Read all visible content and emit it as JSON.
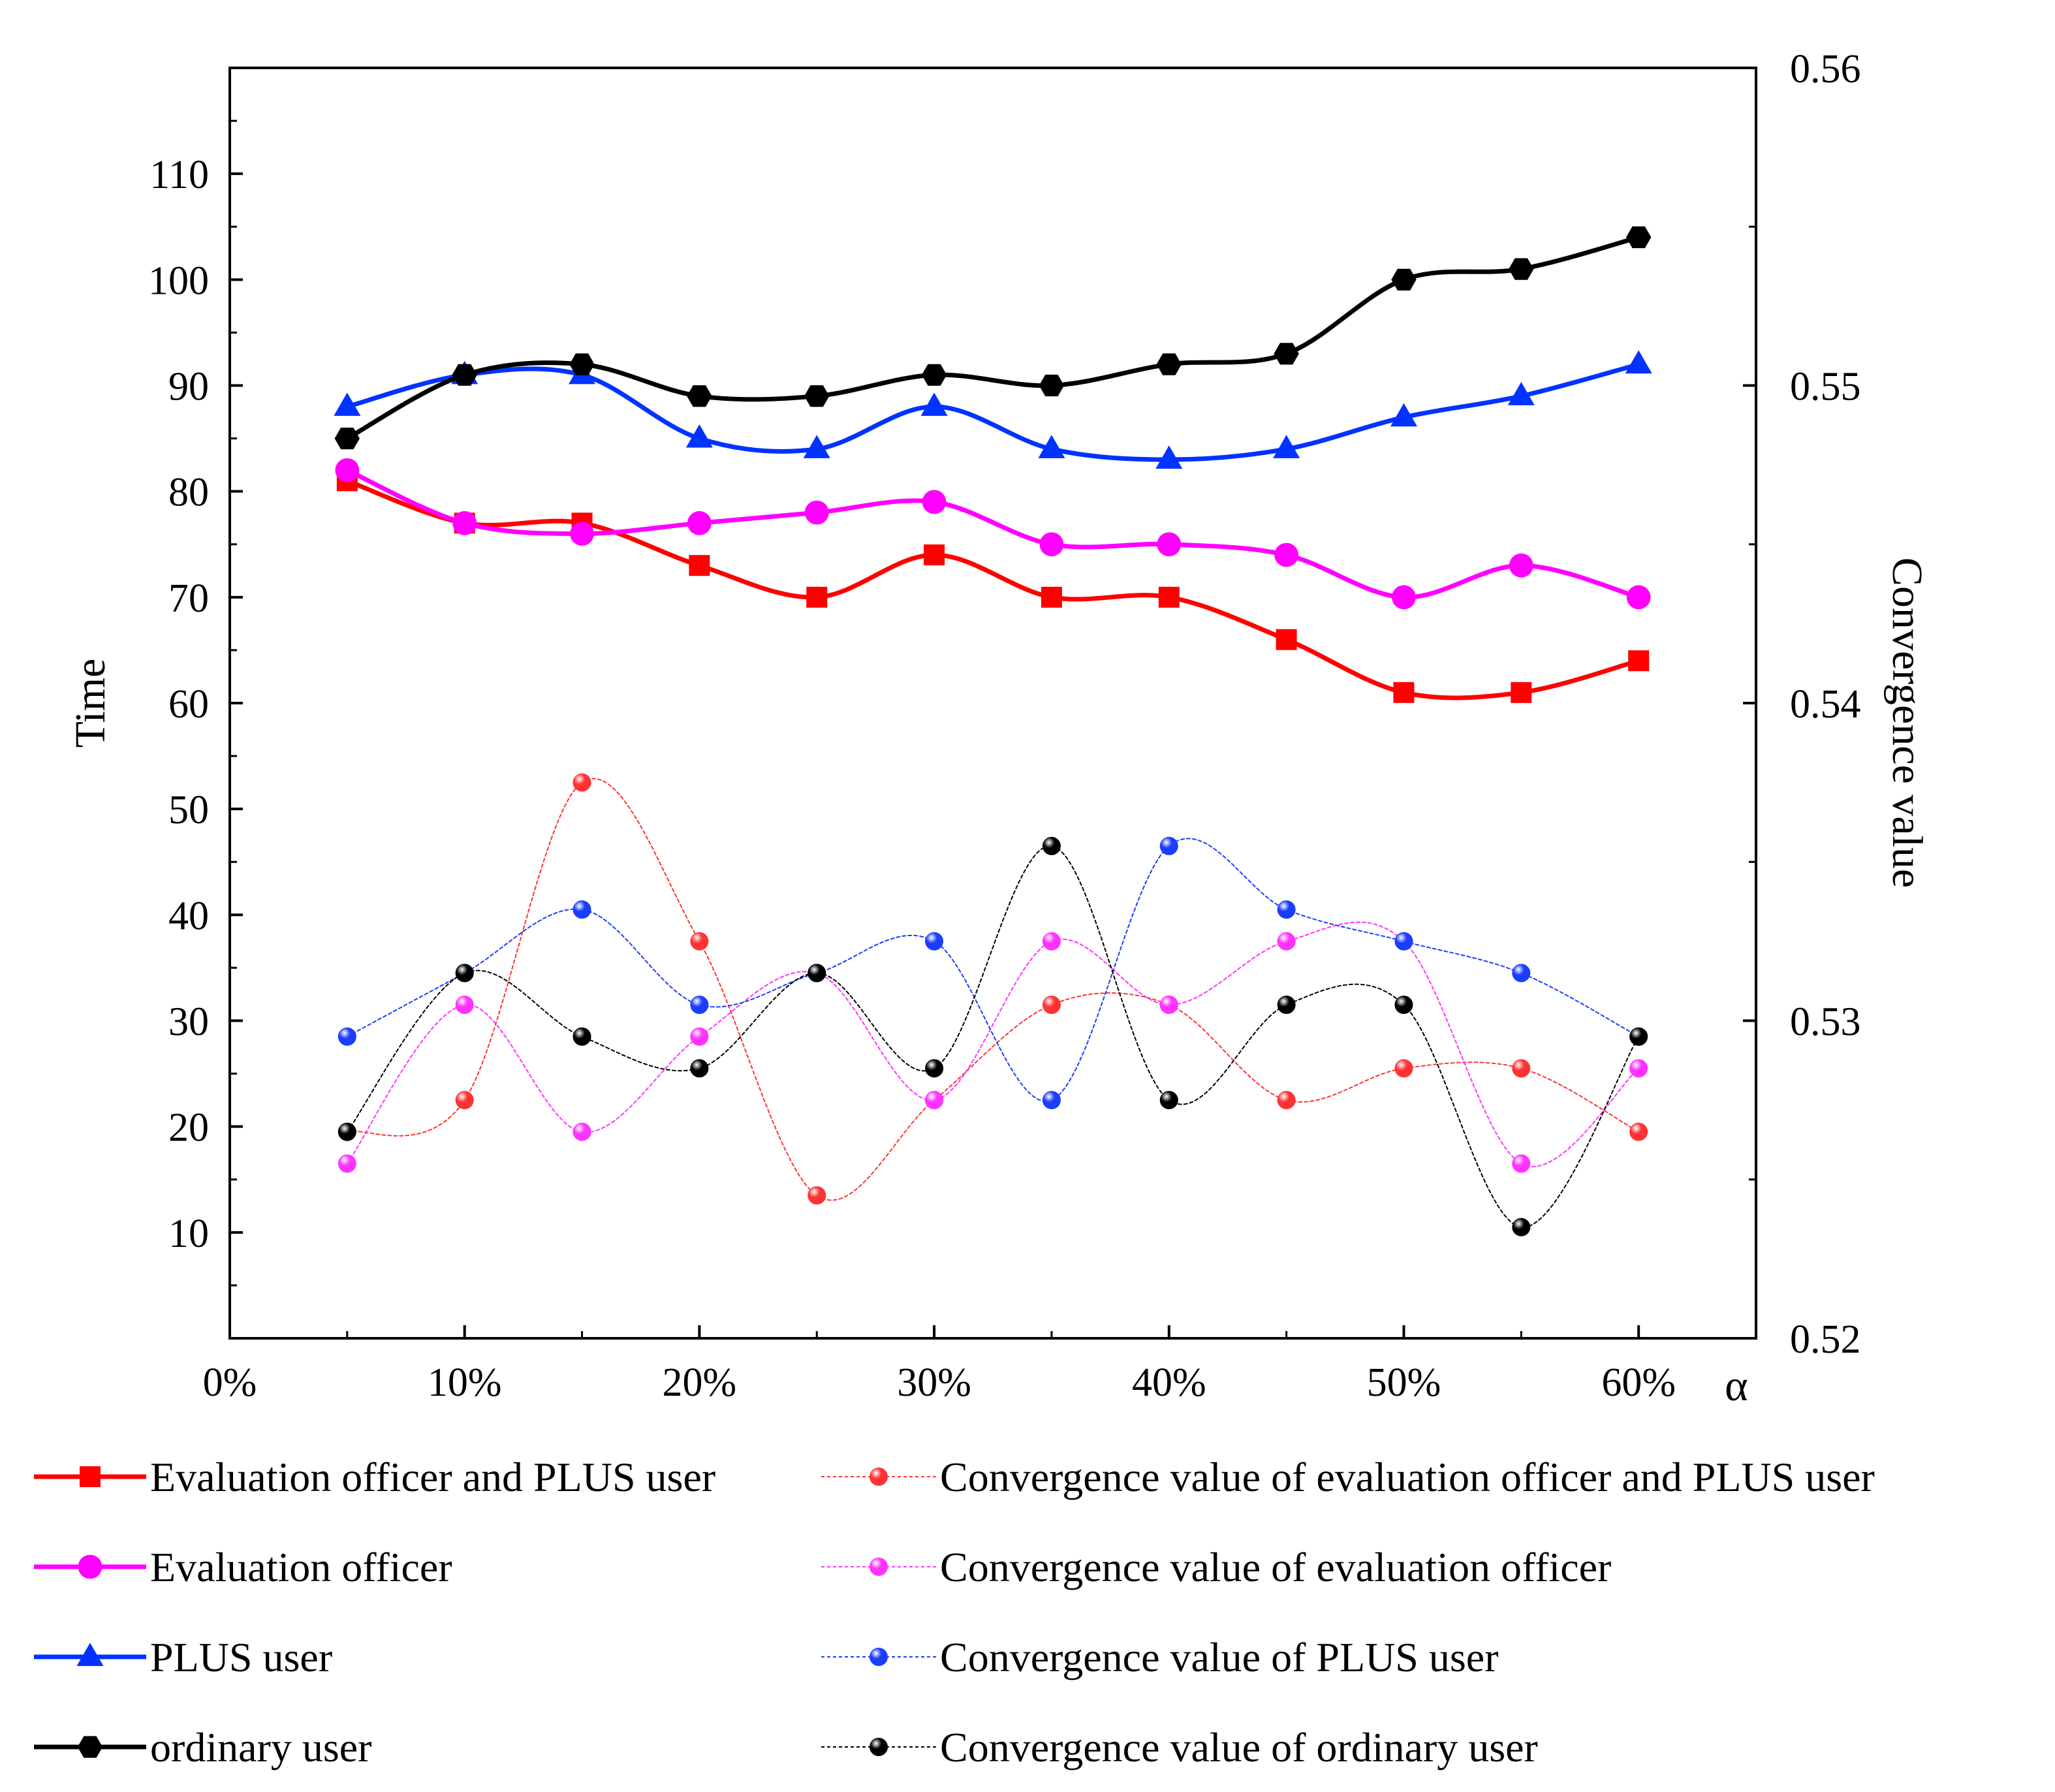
{
  "chart_data": {
    "type": "line",
    "x_unit": "percent",
    "x": [
      5,
      10,
      15,
      20,
      25,
      30,
      35,
      40,
      45,
      50,
      55,
      60
    ],
    "x_range": [
      0,
      65
    ],
    "x_ticks": [
      0,
      10,
      20,
      30,
      40,
      50,
      60
    ],
    "x_tick_labels": [
      "0%",
      "10%",
      "20%",
      "30%",
      "40%",
      "50%",
      "60%"
    ],
    "xlabel": "α",
    "y_left": {
      "label": "Time",
      "range": [
        0,
        120
      ],
      "ticks": [
        10,
        20,
        30,
        40,
        50,
        60,
        70,
        80,
        90,
        100,
        110
      ],
      "tick_labels": [
        "10",
        "20",
        "30",
        "40",
        "50",
        "60",
        "70",
        "80",
        "90",
        "100",
        "110"
      ]
    },
    "y_right": {
      "label": "Convergence value",
      "range": [
        0.52,
        0.56
      ],
      "ticks": [
        0.52,
        0.53,
        0.54,
        0.55,
        0.56
      ],
      "tick_labels": [
        "0.52",
        "0.53",
        "0.54",
        "0.55",
        "0.56"
      ]
    },
    "series": [
      {
        "name": "Evaluation officer and PLUS user",
        "axis": "left",
        "color": "#ff0000",
        "marker": "square",
        "style": "solid",
        "values": [
          81,
          77,
          77,
          73,
          70,
          74,
          70,
          70,
          66,
          61,
          61,
          64
        ]
      },
      {
        "name": "Evaluation officer",
        "axis": "left",
        "color": "#ff00ff",
        "marker": "circle",
        "style": "solid",
        "values": [
          82,
          77,
          76,
          77,
          78,
          79,
          75,
          75,
          74,
          70,
          73,
          70
        ]
      },
      {
        "name": "PLUS user",
        "axis": "left",
        "color": "#0033ff",
        "marker": "triangle",
        "style": "solid",
        "values": [
          88,
          91,
          91,
          85,
          84,
          88,
          84,
          83,
          84,
          87,
          89,
          92
        ]
      },
      {
        "name": "ordinary user",
        "axis": "left",
        "color": "#000000",
        "marker": "hexagon",
        "style": "solid",
        "values": [
          85,
          91,
          92,
          89,
          89,
          91,
          90,
          92,
          93,
          100,
          101,
          104
        ]
      },
      {
        "name": "Convergence value of evaluation officer and PLUS user",
        "axis": "right",
        "color": "#ff3333",
        "marker": "ball",
        "style": "dotted",
        "values": [
          0.5265,
          0.5275,
          0.5375,
          0.5325,
          0.5245,
          0.5275,
          0.5305,
          0.5305,
          0.5275,
          0.5285,
          0.5285,
          0.5265
        ]
      },
      {
        "name": "Convergence value of evaluation officer",
        "axis": "right",
        "color": "#ff33ff",
        "marker": "ball",
        "style": "dotted",
        "values": [
          0.5255,
          0.5305,
          0.5265,
          0.5295,
          0.5315,
          0.5275,
          0.5325,
          0.5305,
          0.5325,
          0.5325,
          0.5255,
          0.5285
        ]
      },
      {
        "name": "Convergence value of PLUS user",
        "axis": "right",
        "color": "#1a3dff",
        "marker": "ball",
        "style": "dotted",
        "values": [
          0.5295,
          0.5315,
          0.5335,
          0.5305,
          0.5315,
          0.5325,
          0.5275,
          0.5355,
          0.5335,
          0.5325,
          0.5315,
          0.5295
        ]
      },
      {
        "name": "Convergence value of ordinary user",
        "axis": "right",
        "color": "#000000",
        "marker": "ball",
        "style": "dotted",
        "values": [
          0.5265,
          0.5315,
          0.5295,
          0.5285,
          0.5315,
          0.5285,
          0.5355,
          0.5275,
          0.5305,
          0.5305,
          0.5235,
          0.5295
        ]
      }
    ],
    "legend": {
      "placement": "bottom",
      "columns": 2
    }
  }
}
